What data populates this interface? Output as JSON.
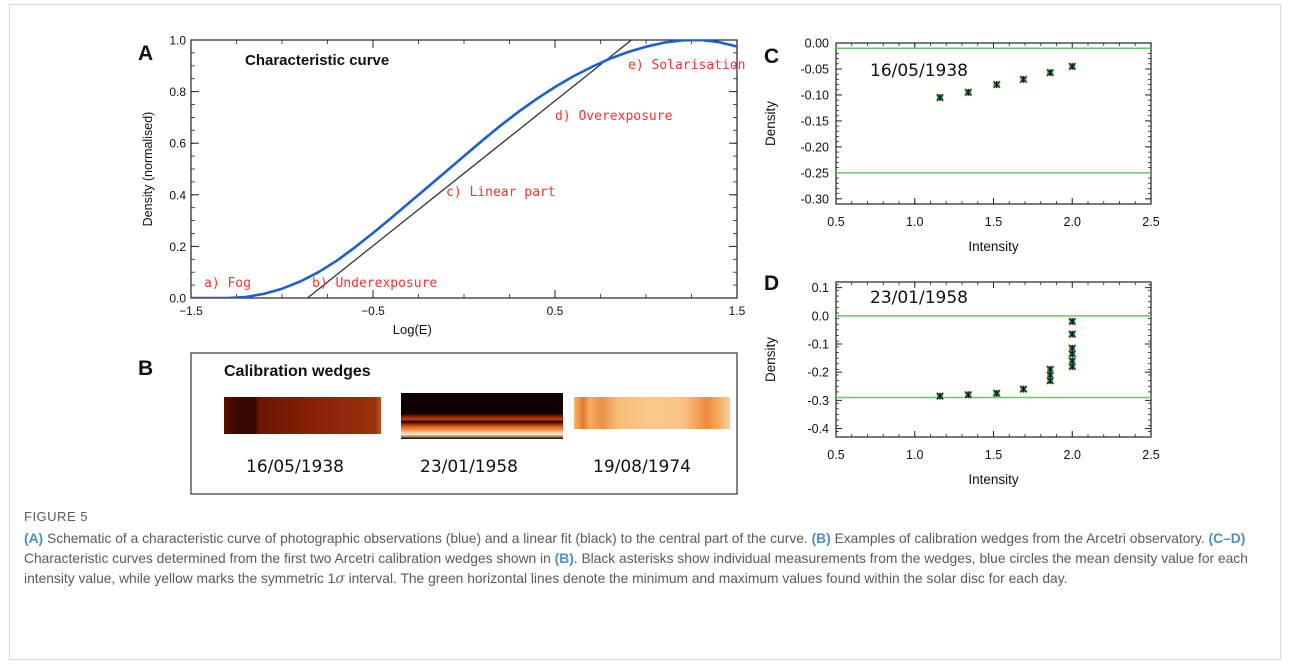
{
  "figure": {
    "label": "FIGURE 5",
    "caption_parts": {
      "a_tag": "(A)",
      "a_text": " Schematic of a characteristic curve of photographic observations (blue) and a linear fit (black) to the central part of the curve. ",
      "b_tag": "(B)",
      "b_text": " Examples of calibration wedges from the Arcetri observatory. ",
      "cd_tag": "(C–D)",
      "cd_text": " Characteristic curves determined from the first two Arcetri calibration wedges shown in ",
      "b_ref": "(B)",
      "rest_1": ". Black asterisks show individual measurements from the wedges, blue circles the mean density value for each intensity value, while yellow marks the symmetric 1",
      "sigma": "σ",
      "rest_2": " interval. The green horizontal lines denote the minimum and maximum values found within the solar disc for each day."
    }
  },
  "panel_b": {
    "letter": "B",
    "title": "Calibration wedges",
    "dates": [
      "16/05/1938",
      "23/01/1958",
      "19/08/1974"
    ]
  },
  "colors": {
    "blue_curve": "#1a5fd6",
    "fit_line": "#333333",
    "annotation_red": "#ff3030",
    "green_line": "#6cc26c",
    "teal_marker": "#2aa39a",
    "yellow_marker": "#e0b23a",
    "caption_ref": "#4a8fc4"
  },
  "chart_data": [
    {
      "panel": "A",
      "type": "line",
      "title": "Characteristic curve",
      "xlabel": "Log(E)",
      "ylabel": "Density (normalised)",
      "xlim": [
        -1.5,
        1.5
      ],
      "ylim": [
        0.0,
        1.0
      ],
      "xticks": [
        -1.5,
        -0.5,
        0.5,
        1.5
      ],
      "xtick_labels": [
        "−1.5",
        "−0.5",
        "0.5",
        "1.5"
      ],
      "yticks": [
        0.0,
        0.2,
        0.4,
        0.6,
        0.8,
        1.0
      ],
      "ytick_labels": [
        "0.0",
        "0.2",
        "0.4",
        "0.6",
        "0.8",
        "1.0"
      ],
      "series": [
        {
          "name": "characteristic curve",
          "color": "blue",
          "x": [
            -1.5,
            -1.4,
            -1.3,
            -1.2,
            -1.1,
            -1.0,
            -0.9,
            -0.8,
            -0.7,
            -0.6,
            -0.5,
            -0.4,
            -0.3,
            -0.2,
            -0.1,
            0.0,
            0.1,
            0.2,
            0.3,
            0.4,
            0.5,
            0.6,
            0.7,
            0.8,
            0.9,
            1.0,
            1.1,
            1.2,
            1.3,
            1.4,
            1.5
          ],
          "y": [
            0.0,
            0.0,
            0.0,
            0.004,
            0.016,
            0.036,
            0.064,
            0.1,
            0.144,
            0.196,
            0.252,
            0.31,
            0.37,
            0.43,
            0.49,
            0.55,
            0.61,
            0.668,
            0.722,
            0.772,
            0.818,
            0.859,
            0.895,
            0.927,
            0.953,
            0.974,
            0.99,
            0.999,
            1.0,
            0.992,
            0.975
          ]
        },
        {
          "name": "linear fit",
          "color": "black",
          "x": [
            -0.86,
            0.92
          ],
          "y": [
            0.0,
            1.0
          ]
        }
      ],
      "annotations": [
        "a) Fog",
        "b) Underexposure",
        "c) Linear part",
        "d) Overexposure",
        "e) Solarisation"
      ]
    },
    {
      "panel": "C",
      "type": "scatter",
      "title": "16/05/1938",
      "xlabel": "Intensity",
      "ylabel": "Density",
      "xlim": [
        0.5,
        2.5
      ],
      "ylim": [
        -0.31,
        0.0
      ],
      "xticks": [
        0.5,
        1.0,
        1.5,
        2.0,
        2.5
      ],
      "xtick_labels": [
        "0.5",
        "1.0",
        "1.5",
        "2.0",
        "2.5"
      ],
      "yticks": [
        0.0,
        -0.05,
        -0.1,
        -0.15,
        -0.2,
        -0.25,
        -0.3
      ],
      "ytick_labels": [
        "0.00",
        "-0.05",
        "-0.10",
        "-0.15",
        "-0.20",
        "-0.25",
        "-0.30"
      ],
      "hlines": [
        -0.01,
        -0.25
      ],
      "x": [
        1.16,
        1.34,
        1.52,
        1.69,
        1.86,
        2.0
      ],
      "y": [
        -0.105,
        -0.095,
        -0.08,
        -0.07,
        -0.057,
        -0.045
      ]
    },
    {
      "panel": "D",
      "type": "scatter",
      "title": "23/01/1958",
      "xlabel": "Intensity",
      "ylabel": "Density",
      "xlim": [
        0.5,
        2.5
      ],
      "ylim": [
        -0.43,
        0.12
      ],
      "xticks": [
        0.5,
        1.0,
        1.5,
        2.0,
        2.5
      ],
      "xtick_labels": [
        "0.5",
        "1.0",
        "1.5",
        "2.0",
        "2.5"
      ],
      "yticks": [
        0.1,
        0.0,
        -0.1,
        -0.2,
        -0.3,
        -0.4
      ],
      "ytick_labels": [
        "0.1",
        "0.0",
        "-0.1",
        "-0.2",
        "-0.3",
        "-0.4"
      ],
      "hlines": [
        0.0,
        -0.29
      ],
      "x": [
        1.16,
        1.34,
        1.52,
        1.69,
        1.86,
        1.86,
        1.86,
        2.0,
        2.0,
        2.0,
        2.0,
        2.0,
        2.0
      ],
      "y": [
        -0.285,
        -0.28,
        -0.275,
        -0.26,
        -0.19,
        -0.21,
        -0.23,
        -0.02,
        -0.065,
        -0.115,
        -0.135,
        -0.16,
        -0.18
      ]
    }
  ]
}
